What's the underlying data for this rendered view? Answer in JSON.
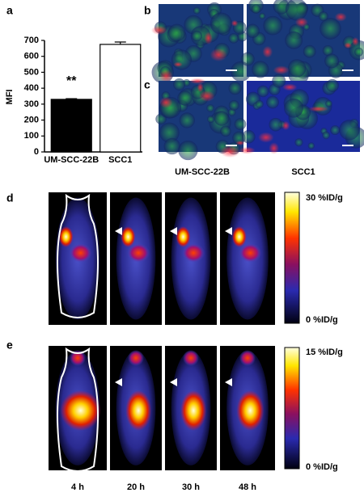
{
  "panel_labels": [
    "a",
    "b",
    "c",
    "d",
    "e"
  ],
  "chart_data": {
    "type": "bar",
    "ylabel": "MFI",
    "categories": [
      "UM-SCC-22B",
      "SCC1"
    ],
    "values": [
      330,
      675
    ],
    "errors": [
      4,
      15
    ],
    "colors": [
      "#000000",
      "#ffffff"
    ],
    "annotation": "**",
    "ylim": [
      0,
      700
    ],
    "yticks": [
      0,
      100,
      200,
      300,
      400,
      500,
      600,
      700
    ]
  },
  "microscopy": {
    "columns": [
      "UM-SCC-22B",
      "SCC1"
    ]
  },
  "pet": {
    "scales": [
      {
        "max": "30 %ID/g",
        "min": "0 %ID/g"
      },
      {
        "max": "15 %ID/g",
        "min": "0 %ID/g"
      }
    ],
    "timepoints": [
      "4 h",
      "20 h",
      "30 h",
      "48 h"
    ]
  }
}
